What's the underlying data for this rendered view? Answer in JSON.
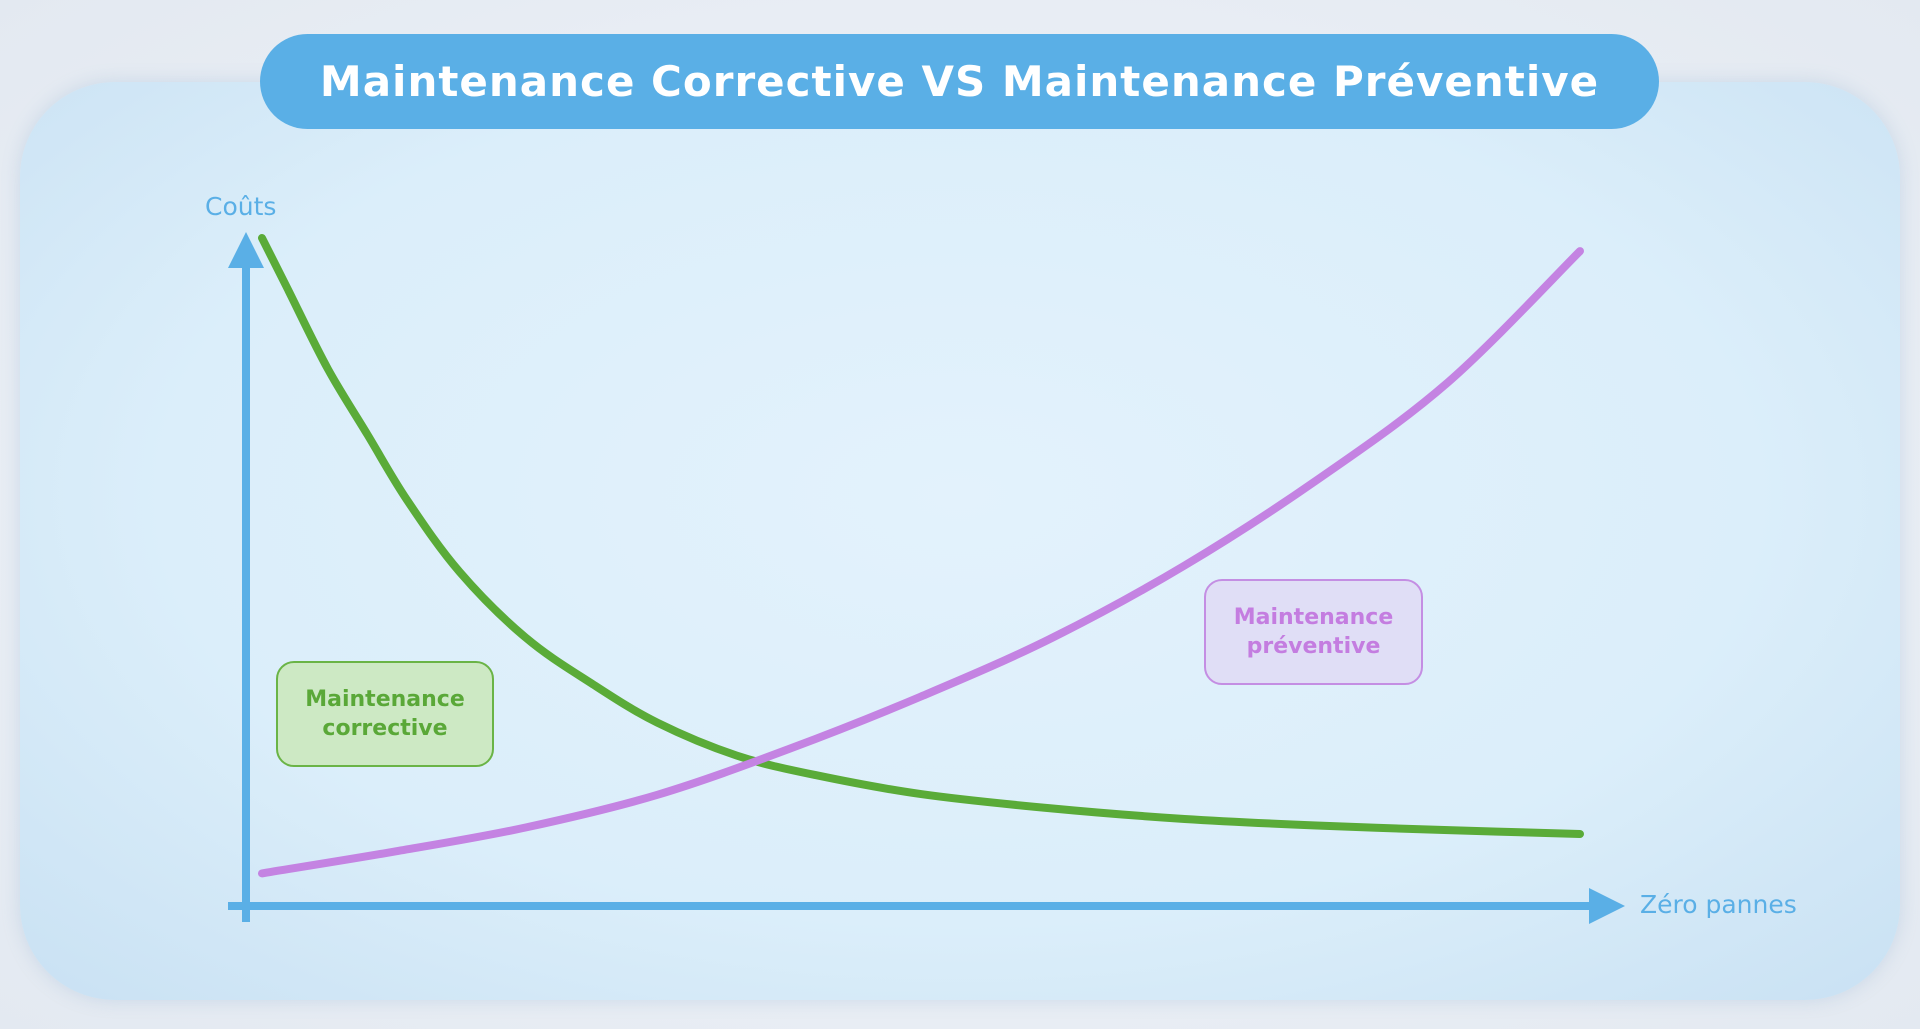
{
  "title": "Maintenance Corrective VS Maintenance Préventive",
  "colors": {
    "axis": "#5aafe6",
    "corrective": "#5aab38",
    "preventive": "#c483e2",
    "title_background": "#5aafe6"
  },
  "chart_data": {
    "type": "line",
    "title": "Maintenance Corrective VS Maintenance Préventive",
    "xlabel": "Zéro pannes",
    "ylabel": "Coûts",
    "xlim": [
      0,
      1
    ],
    "ylim": [
      0,
      1
    ],
    "ticks": "none",
    "grid": false,
    "legend": "inline labels",
    "series": [
      {
        "name": "Maintenance corrective",
        "color": "#5aab38",
        "x": [
          0.0,
          0.02,
          0.05,
          0.08,
          0.11,
          0.15,
          0.2,
          0.25,
          0.3,
          0.36,
          0.42,
          0.5,
          0.6,
          0.7,
          0.8,
          0.9,
          1.0
        ],
        "y": [
          1.0,
          0.92,
          0.8,
          0.7,
          0.6,
          0.49,
          0.39,
          0.32,
          0.26,
          0.21,
          0.18,
          0.151,
          0.129,
          0.113,
          0.103,
          0.096,
          0.09
        ]
      },
      {
        "name": "Maintenance préventive",
        "color": "#c483e2",
        "x": [
          0.0,
          0.1,
          0.2,
          0.3,
          0.4,
          0.5,
          0.6,
          0.7,
          0.8,
          0.9,
          1.0
        ],
        "y": [
          0.03,
          0.063,
          0.1,
          0.15,
          0.22,
          0.3,
          0.39,
          0.5,
          0.63,
          0.78,
          0.98
        ]
      }
    ]
  },
  "labels": {
    "corrective": "Maintenance\ncorrective",
    "preventive": "Maintenance\npréventive"
  }
}
